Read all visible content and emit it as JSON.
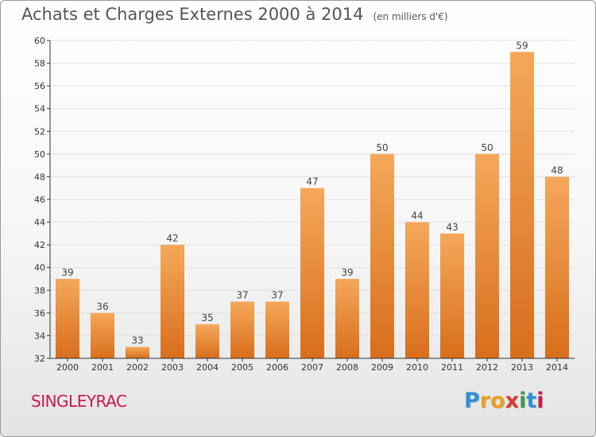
{
  "title": "Achats et Charges Externes 2000 à 2014",
  "subtitle": "(en milliers d'€)",
  "place": "SINGLEYRAC",
  "logo": {
    "letters": [
      "P",
      "r",
      "o",
      "x",
      "i",
      "t",
      "i"
    ],
    "colors": [
      "#2f8fd8",
      "#e8a020",
      "#e8a020",
      "#d83a2f",
      "#3aa040",
      "#2f8fd8",
      "#c8194c"
    ]
  },
  "colors": {
    "bar_light": "#f5a85a",
    "bar_dark": "#d86e1c",
    "axis": "#333333",
    "grid": "#e0e0e0"
  },
  "chart_data": {
    "type": "bar",
    "title": "Achats et Charges Externes 2000 à 2014",
    "subtitle": "(en milliers d'€)",
    "categories": [
      "2000",
      "2001",
      "2002",
      "2003",
      "2004",
      "2005",
      "2006",
      "2007",
      "2008",
      "2009",
      "2010",
      "2011",
      "2012",
      "2013",
      "2014"
    ],
    "values": [
      39,
      36,
      33,
      42,
      35,
      37,
      37,
      47,
      39,
      50,
      44,
      43,
      50,
      59,
      48
    ],
    "xlabel": "",
    "ylabel": "",
    "ylim": [
      32,
      60
    ],
    "yticks": [
      32,
      34,
      36,
      38,
      40,
      42,
      44,
      46,
      48,
      50,
      52,
      54,
      56,
      58,
      60
    ],
    "grid": true,
    "data_labels": true
  }
}
